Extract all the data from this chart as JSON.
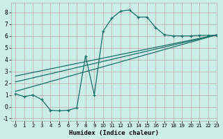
{
  "xlabel": "Humidex (Indice chaleur)",
  "bg_color": "#cceee8",
  "line_color": "#1a7068",
  "xlim": [
    -0.5,
    23
  ],
  "ylim": [
    -1.2,
    8.8
  ],
  "xticks": [
    0,
    1,
    2,
    3,
    4,
    5,
    6,
    7,
    8,
    9,
    10,
    11,
    12,
    13,
    14,
    15,
    16,
    17,
    18,
    19,
    20,
    21,
    22,
    23
  ],
  "yticks": [
    -1,
    0,
    1,
    2,
    3,
    4,
    5,
    6,
    7,
    8
  ],
  "curve1_x": [
    0,
    1,
    2,
    3,
    4,
    5,
    6,
    7,
    8,
    9,
    10,
    11,
    12,
    13,
    14,
    15,
    16,
    17,
    18,
    19,
    20,
    21,
    22,
    23
  ],
  "curve1_y": [
    1.1,
    0.85,
    1.0,
    0.6,
    -0.3,
    -0.35,
    -0.3,
    -0.1,
    4.3,
    1.0,
    6.4,
    7.5,
    8.1,
    8.2,
    7.6,
    7.6,
    6.7,
    6.1,
    6.0,
    6.0,
    6.0,
    6.05,
    6.05,
    6.05
  ],
  "line1_x": [
    0,
    23
  ],
  "line1_y": [
    1.3,
    6.1
  ],
  "line2_x": [
    0,
    23
  ],
  "line2_y": [
    2.1,
    6.1
  ],
  "line3_x": [
    0,
    23
  ],
  "line3_y": [
    2.6,
    6.1
  ]
}
